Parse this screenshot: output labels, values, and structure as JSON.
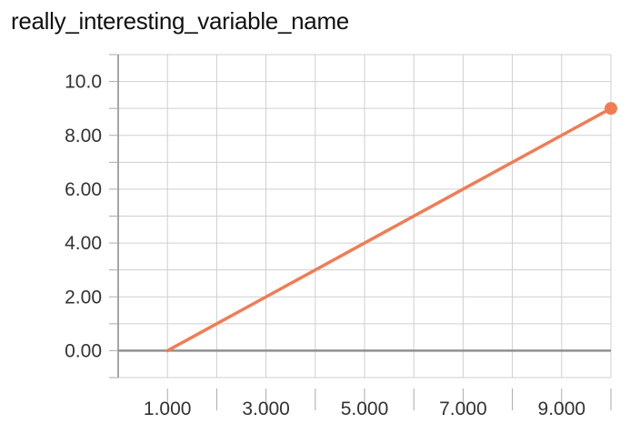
{
  "chart_data": {
    "type": "line",
    "title": "really_interesting_variable_name",
    "xlabel": "",
    "ylabel": "",
    "xlim": [
      0,
      10
    ],
    "ylim": [
      -1,
      11
    ],
    "grid": true,
    "x_ticks_labeled": [
      1,
      3,
      5,
      7,
      9
    ],
    "x_tick_labels": [
      "1.000",
      "3.000",
      "5.000",
      "7.000",
      "9.000"
    ],
    "y_ticks_labeled": [
      0,
      2,
      4,
      6,
      8,
      10
    ],
    "y_tick_labels": [
      "0.00",
      "2.00",
      "4.00",
      "6.00",
      "8.00",
      "10.0"
    ],
    "series": [
      {
        "color": "#f07c55",
        "x": [
          1,
          10
        ],
        "y": [
          0,
          9
        ]
      }
    ]
  }
}
